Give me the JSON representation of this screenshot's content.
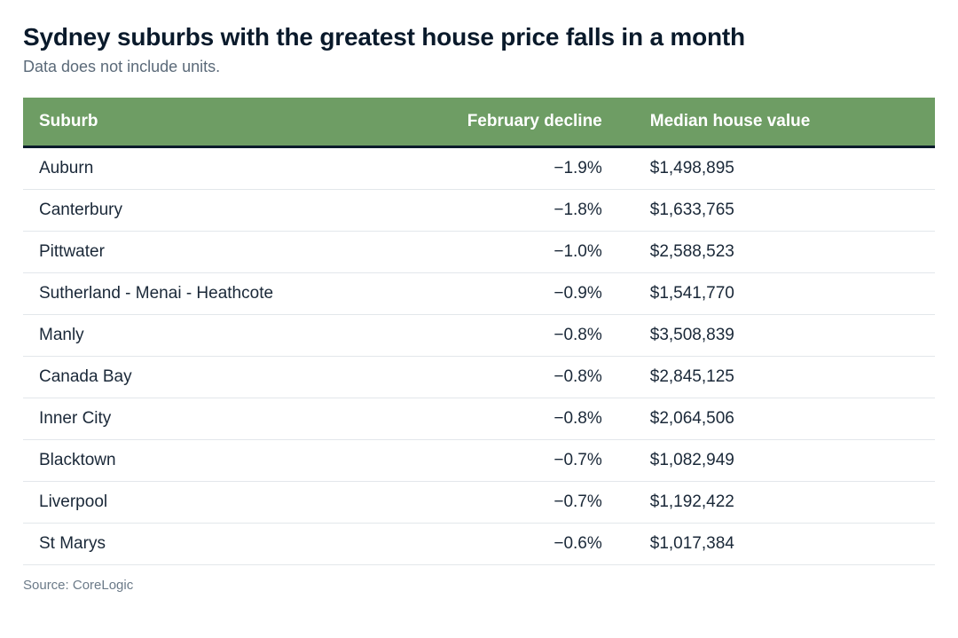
{
  "title": "Sydney suburbs with the greatest house price falls in a month",
  "subtitle": "Data does not include units.",
  "source": "Source: CoreLogic",
  "table": {
    "type": "table",
    "header_bg": "#6e9d64",
    "header_text_color": "#ffffff",
    "header_underline": "#0a1a2b",
    "row_border": "#e3e7eb",
    "title_color": "#0a1a2b",
    "subtitle_color": "#5b6a79",
    "font_family": "Segoe UI / Helvetica Neue",
    "title_fontsize": 28,
    "header_fontsize": 19,
    "cell_fontsize": 19,
    "columns": [
      {
        "key": "suburb",
        "label": "Suburb",
        "width_pct": 45,
        "align": "left"
      },
      {
        "key": "decline",
        "label": "February decline",
        "width_pct": 22,
        "align": "right"
      },
      {
        "key": "median",
        "label": "Median house value",
        "width_pct": 33,
        "align": "left"
      }
    ],
    "rows": [
      {
        "suburb": "Auburn",
        "decline": "−1.9%",
        "median": "$1,498,895"
      },
      {
        "suburb": "Canterbury",
        "decline": "−1.8%",
        "median": "$1,633,765"
      },
      {
        "suburb": "Pittwater",
        "decline": "−1.0%",
        "median": "$2,588,523"
      },
      {
        "suburb": "Sutherland - Menai - Heathcote",
        "decline": "−0.9%",
        "median": "$1,541,770"
      },
      {
        "suburb": "Manly",
        "decline": "−0.8%",
        "median": "$3,508,839"
      },
      {
        "suburb": "Canada Bay",
        "decline": "−0.8%",
        "median": "$2,845,125"
      },
      {
        "suburb": "Inner City",
        "decline": "−0.8%",
        "median": "$2,064,506"
      },
      {
        "suburb": "Blacktown",
        "decline": "−0.7%",
        "median": "$1,082,949"
      },
      {
        "suburb": "Liverpool",
        "decline": "−0.7%",
        "median": "$1,192,422"
      },
      {
        "suburb": "St Marys",
        "decline": "−0.6%",
        "median": "$1,017,384"
      }
    ]
  }
}
